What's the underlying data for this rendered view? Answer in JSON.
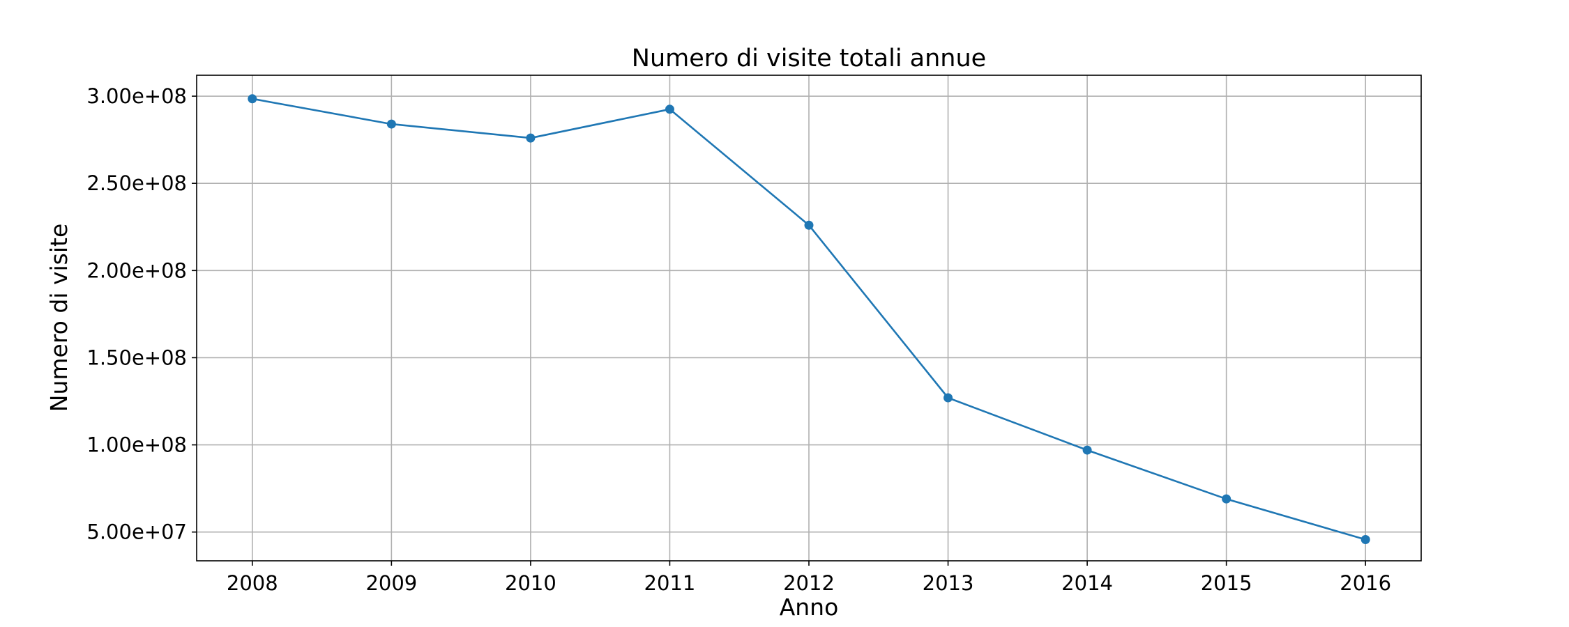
{
  "chart_data": {
    "type": "line",
    "title": "Numero di visite totali annue",
    "xlabel": "Anno",
    "ylabel": "Numero di visite",
    "x": [
      2008,
      2009,
      2010,
      2011,
      2012,
      2013,
      2014,
      2015,
      2016
    ],
    "x_tick_labels": [
      "2008",
      "2009",
      "2010",
      "2011",
      "2012",
      "2013",
      "2014",
      "2015",
      "2016"
    ],
    "series": [
      {
        "values": [
          298500000,
          284000000,
          276000000,
          292500000,
          226000000,
          127000000,
          97000000,
          69000000,
          45700000
        ],
        "color": "#1f77b4",
        "marker": "circle"
      }
    ],
    "y_ticks": [
      50000000,
      100000000,
      150000000,
      200000000,
      250000000,
      300000000
    ],
    "y_tick_labels": [
      "5.00e+07",
      "1.00e+08",
      "1.50e+08",
      "2.00e+08",
      "2.50e+08",
      "3.00e+08"
    ],
    "xlim": [
      2007.6,
      2016.4
    ],
    "ylim": [
      33500000,
      312000000
    ],
    "grid": true,
    "legend": "none"
  }
}
